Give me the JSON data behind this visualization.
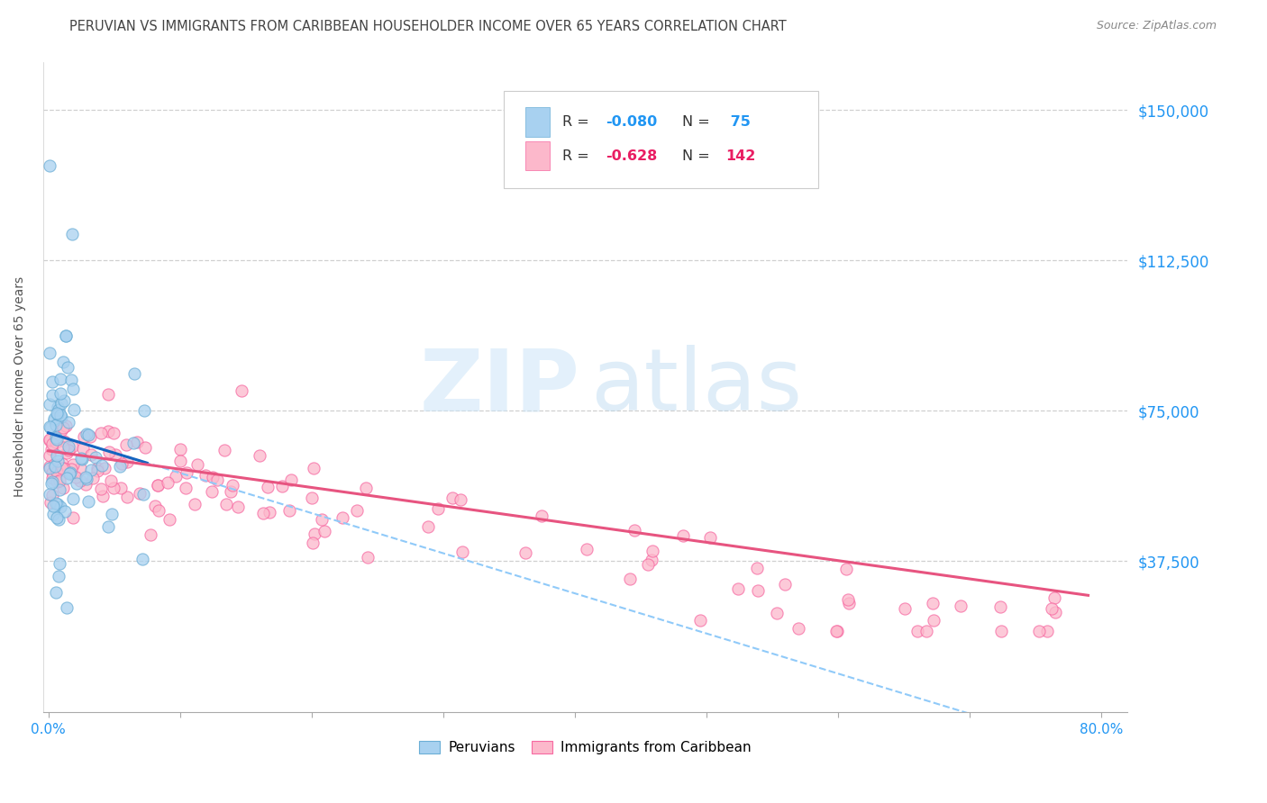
{
  "title": "PERUVIAN VS IMMIGRANTS FROM CARIBBEAN HOUSEHOLDER INCOME OVER 65 YEARS CORRELATION CHART",
  "source": "Source: ZipAtlas.com",
  "ylabel": "Householder Income Over 65 years",
  "ytick_labels": [
    "$37,500",
    "$75,000",
    "$112,500",
    "$150,000"
  ],
  "ytick_values": [
    37500,
    75000,
    112500,
    150000
  ],
  "ymin": 0,
  "ymax": 162000,
  "xmin": -0.004,
  "xmax": 0.82,
  "color_blue": "#a8d1f0",
  "color_blue_edge": "#6baed6",
  "color_pink": "#fcb8cb",
  "color_pink_edge": "#f768a1",
  "color_blue_line": "#1565C0",
  "color_pink_line": "#e75480",
  "color_dash": "#90CAF9",
  "color_blue_text": "#2196F3",
  "color_pink_text": "#e91e63",
  "grid_color": "#d0d0d0",
  "title_color": "#444444",
  "source_color": "#888888",
  "label_color": "#555555",
  "xtick_show": [
    0.0,
    0.8
  ],
  "xtick_labels_show": [
    "0.0%",
    "80.0%"
  ],
  "legend_r1_black": "R = ",
  "legend_r1_val": "-0.080",
  "legend_n1_black": "N = ",
  "legend_n1_val": " 75",
  "legend_r2_black": "R = ",
  "legend_r2_val": "-0.628",
  "legend_n2_black": "N = ",
  "legend_n2_val": "142"
}
